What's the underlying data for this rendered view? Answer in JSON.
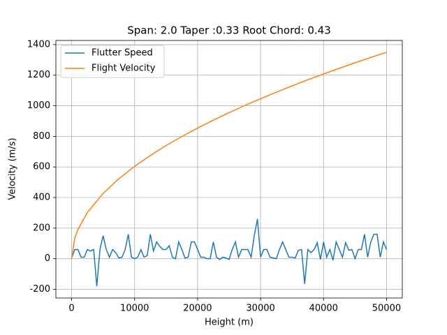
{
  "chart_data": {
    "type": "line",
    "title": "Span: 2.0 Taper :0.33 Root Chord: 0.43",
    "x_label": "Height (m)",
    "y_label": "Velocity (m/s)",
    "xlim": [
      -2500,
      52500
    ],
    "ylim": [
      -257,
      1427
    ],
    "xticks": [
      0,
      10000,
      20000,
      30000,
      40000,
      50000
    ],
    "yticks": [
      -200,
      0,
      200,
      400,
      600,
      800,
      1000,
      1200,
      1400
    ],
    "grid": true,
    "legend": "upper-left",
    "series": [
      {
        "name": "Flutter Speed",
        "color": "#1f77b4",
        "x": [
          0,
          500,
          1000,
          1500,
          2000,
          2500,
          3000,
          3500,
          4000,
          4500,
          5000,
          5500,
          6000,
          6500,
          7000,
          7500,
          8000,
          8500,
          9000,
          9500,
          10000,
          10500,
          11000,
          11500,
          12000,
          12500,
          13000,
          13500,
          14000,
          14500,
          15000,
          15500,
          16000,
          16500,
          17000,
          17500,
          18000,
          18500,
          19000,
          19500,
          20000,
          20500,
          21000,
          21500,
          22000,
          22500,
          23000,
          23500,
          24000,
          24500,
          25000,
          25500,
          26000,
          26500,
          27000,
          27500,
          28000,
          28500,
          29000,
          29500,
          30000,
          30500,
          31000,
          31500,
          32000,
          32500,
          33000,
          33500,
          34000,
          34500,
          35000,
          35500,
          36000,
          36500,
          37000,
          37500,
          38000,
          38500,
          39000,
          39500,
          40000,
          40500,
          41000,
          41500,
          42000,
          42500,
          43000,
          43500,
          44000,
          44500,
          45000,
          45500,
          46000,
          46500,
          47000,
          47500,
          48000,
          48500,
          49000,
          49500,
          50000
        ],
        "values": [
          5,
          60,
          60,
          10,
          10,
          60,
          50,
          60,
          -180,
          60,
          150,
          60,
          10,
          60,
          40,
          5,
          10,
          60,
          160,
          10,
          0,
          10,
          60,
          10,
          20,
          160,
          50,
          110,
          80,
          60,
          60,
          85,
          10,
          0,
          110,
          60,
          5,
          10,
          110,
          110,
          60,
          10,
          10,
          0,
          0,
          110,
          10,
          -5,
          10,
          5,
          -5,
          60,
          110,
          10,
          60,
          60,
          60,
          10,
          150,
          260,
          10,
          60,
          60,
          10,
          5,
          0,
          60,
          110,
          60,
          10,
          10,
          5,
          55,
          60,
          -165,
          60,
          40,
          60,
          105,
          -5,
          110,
          10,
          60,
          -10,
          110,
          60,
          10,
          105,
          55,
          60,
          0,
          60,
          60,
          160,
          10,
          110,
          160,
          160,
          10,
          110,
          60
        ]
      },
      {
        "name": "Flight Velocity",
        "color": "#ff7f0e",
        "x": [
          0,
          500,
          1000,
          2500,
          5000,
          7500,
          10000,
          12500,
          15000,
          17500,
          20000,
          22500,
          25000,
          27500,
          30000,
          32500,
          35000,
          37500,
          40000,
          42500,
          45000,
          47500,
          50000
        ],
        "values": [
          0,
          135,
          191,
          302,
          427,
          523,
          604,
          675,
          740,
          799,
          854,
          906,
          955,
          1002,
          1046,
          1089,
          1130,
          1170,
          1208,
          1245,
          1281,
          1316,
          1350
        ]
      }
    ]
  }
}
